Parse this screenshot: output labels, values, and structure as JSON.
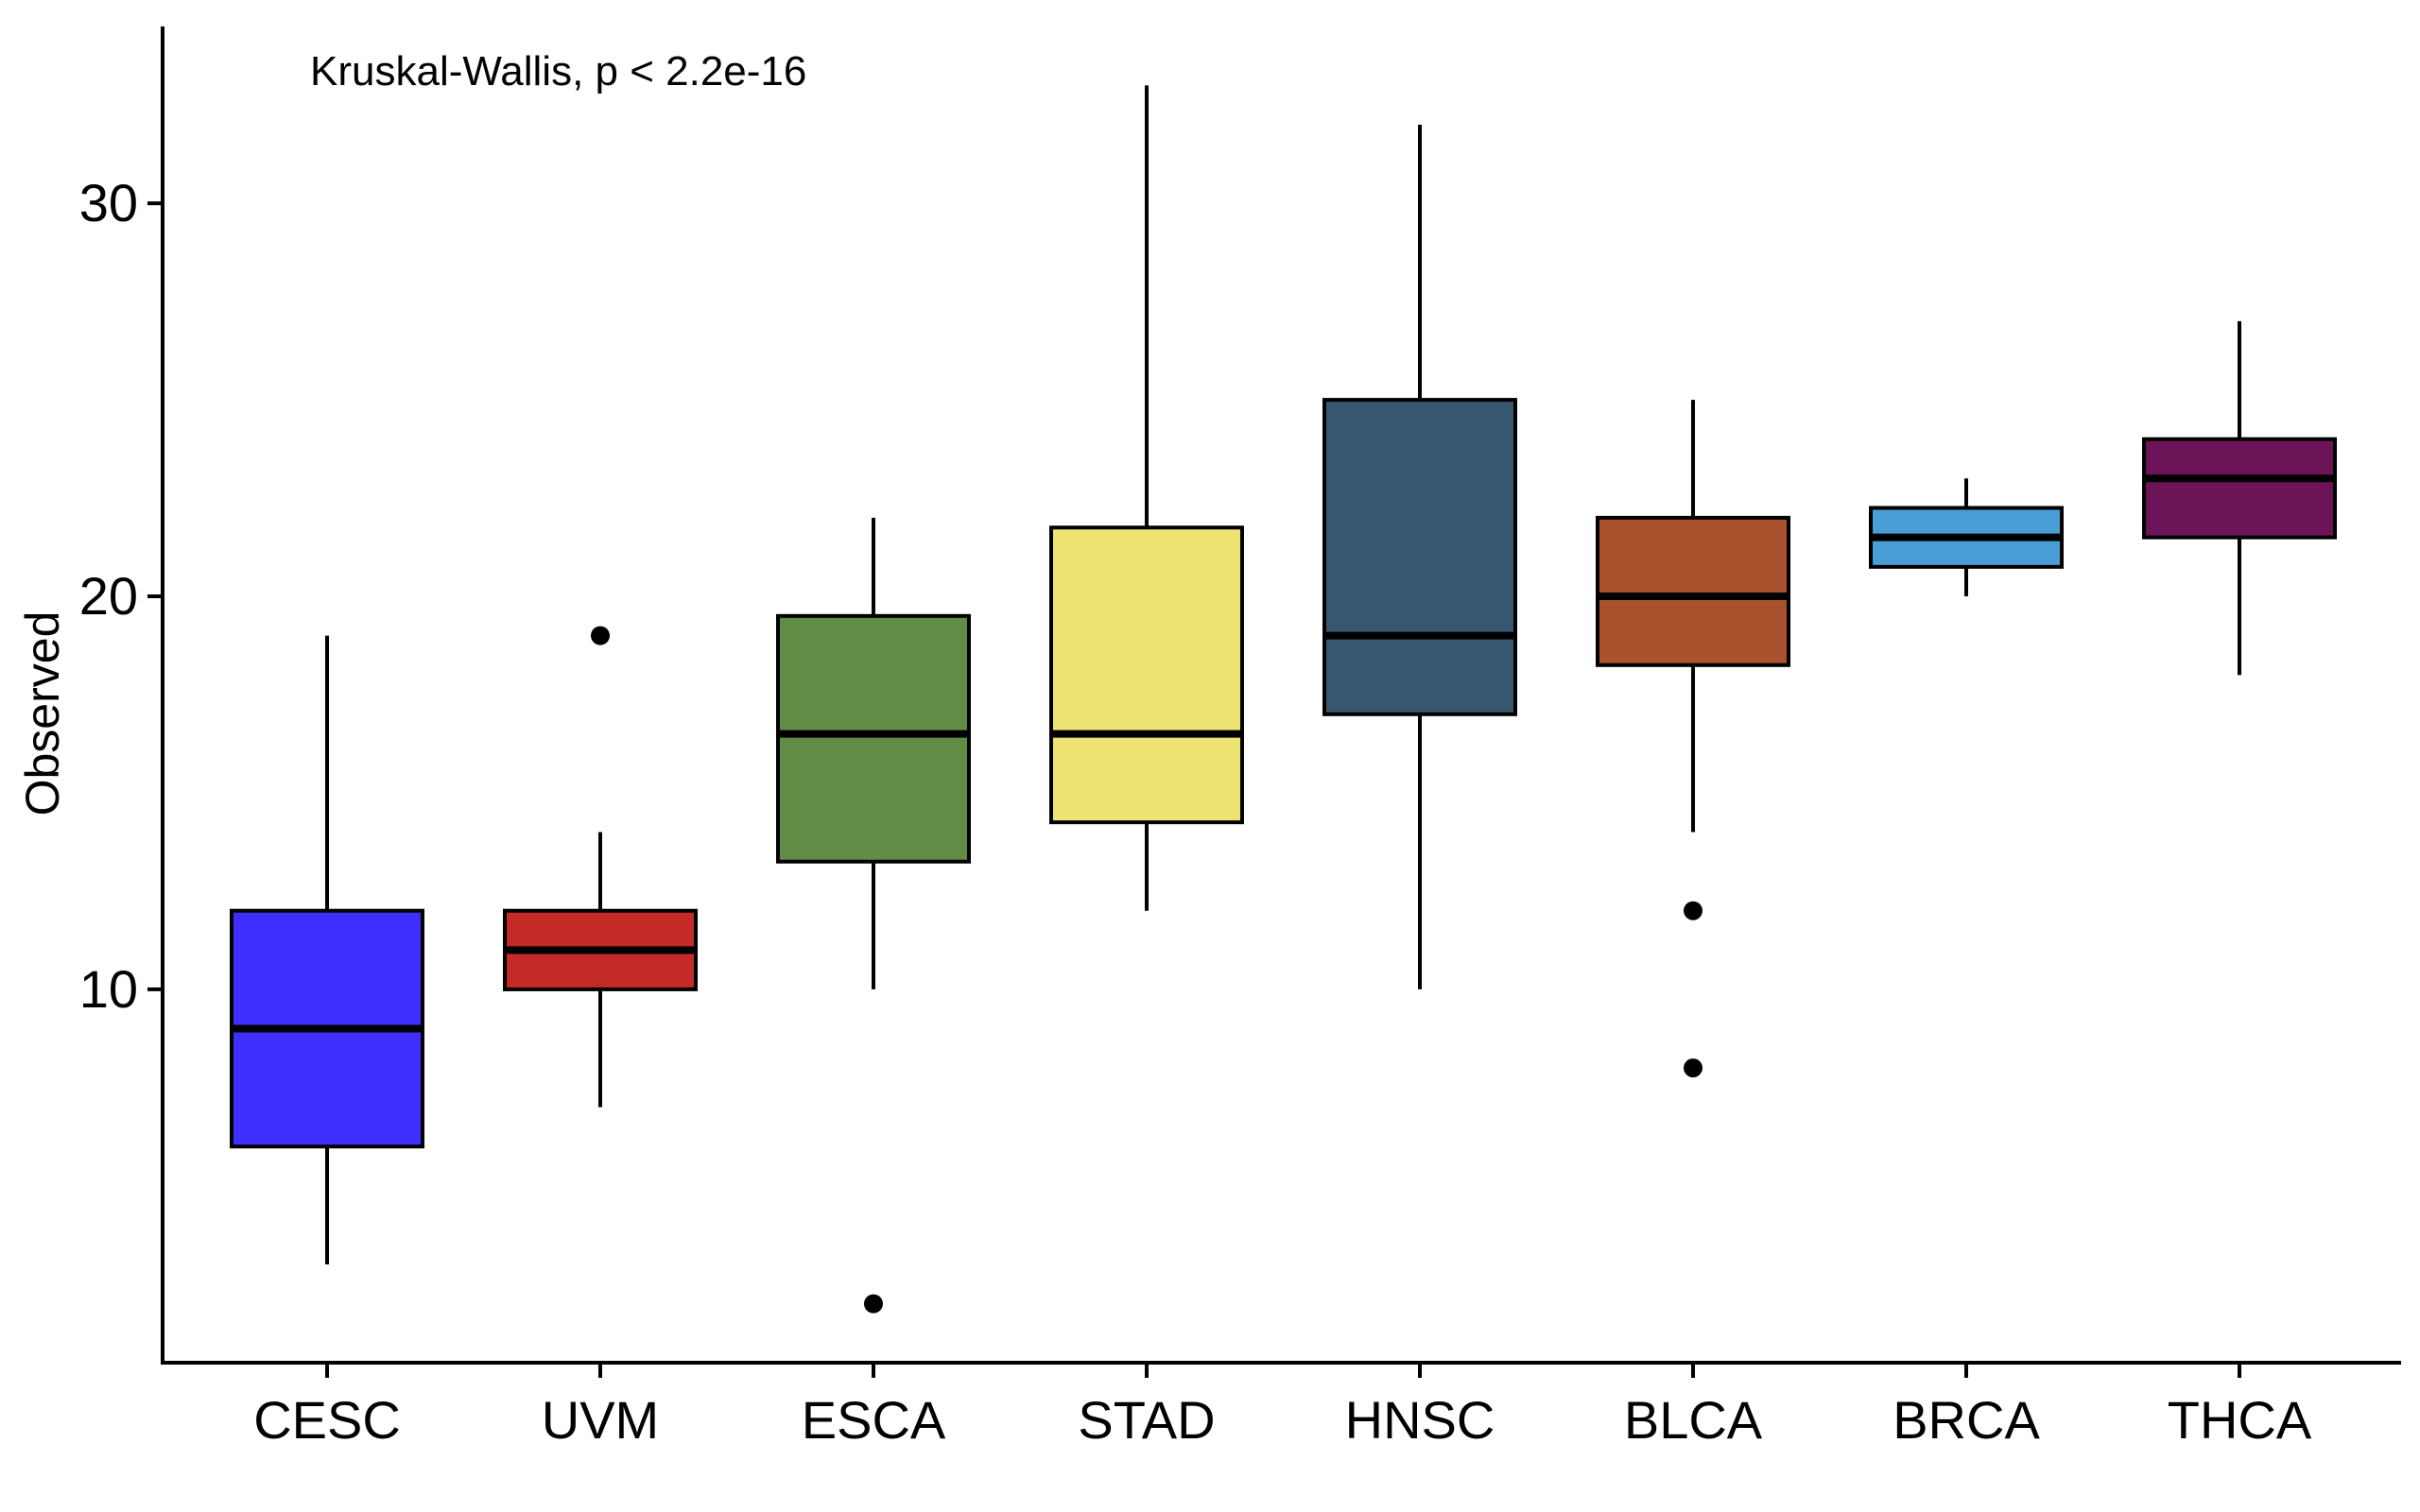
{
  "chart_data": {
    "type": "boxplot",
    "annotation": "Kruskal-Wallis, p < 2.2e-16",
    "xlabel": "",
    "ylabel": "Observed",
    "ylim": [
      0.5,
      34.5
    ],
    "y_ticks": [
      10,
      20,
      30
    ],
    "grid": false,
    "legend": "none",
    "categories": [
      "CESC",
      "UVM",
      "ESCA",
      "STAD",
      "HNSC",
      "BLCA",
      "BRCA",
      "THCA"
    ],
    "boxes": [
      {
        "category": "CESC",
        "color": "#3f2fff",
        "whisker_low": 3,
        "q1": 6,
        "median": 9,
        "q3": 12,
        "whisker_high": 19,
        "outliers": []
      },
      {
        "category": "UVM",
        "color": "#c42a28",
        "whisker_low": 7,
        "q1": 10,
        "median": 11,
        "q3": 12,
        "whisker_high": 14,
        "outliers": [
          19
        ]
      },
      {
        "category": "ESCA",
        "color": "#628c45",
        "whisker_low": 10,
        "q1": 13.25,
        "median": 16.5,
        "q3": 19.5,
        "whisker_high": 22,
        "outliers": [
          2
        ]
      },
      {
        "category": "STAD",
        "color": "#ede473",
        "whisker_low": 12,
        "q1": 14.25,
        "median": 16.5,
        "q3": 21.75,
        "whisker_high": 33,
        "outliers": []
      },
      {
        "category": "HNSC",
        "color": "#37586f",
        "whisker_low": 10,
        "q1": 17,
        "median": 19,
        "q3": 25,
        "whisker_high": 32,
        "outliers": []
      },
      {
        "category": "BLCA",
        "color": "#a9502d",
        "whisker_low": 14,
        "q1": 18.25,
        "median": 20,
        "q3": 22,
        "whisker_high": 25,
        "outliers": [
          12,
          8
        ]
      },
      {
        "category": "BRCA",
        "color": "#4a9ed6",
        "whisker_low": 20,
        "q1": 20.75,
        "median": 21.5,
        "q3": 22.25,
        "whisker_high": 23,
        "outliers": []
      },
      {
        "category": "THCA",
        "color": "#6c1457",
        "whisker_low": 18,
        "q1": 21.5,
        "median": 23,
        "q3": 24,
        "whisker_high": 27,
        "outliers": []
      }
    ]
  }
}
